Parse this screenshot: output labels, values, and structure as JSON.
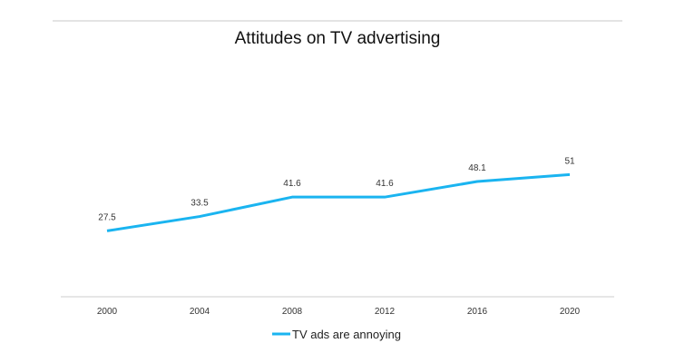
{
  "chart_data": {
    "type": "line",
    "title": "Attitudes on TV advertising",
    "categories": [
      "2000",
      "2004",
      "2008",
      "2012",
      "2016",
      "2020"
    ],
    "series": [
      {
        "name": "TV ads are annoying",
        "values": [
          27.5,
          33.5,
          41.6,
          41.6,
          48.1,
          51
        ],
        "color": "#1ab4f0"
      }
    ],
    "data_labels": [
      "27.5",
      "33.5",
      "41.6",
      "41.6",
      "48.1",
      "51"
    ],
    "ylim": [
      0,
      100
    ],
    "xlabel": "",
    "ylabel": "",
    "grid": false,
    "legend": "bottom"
  }
}
